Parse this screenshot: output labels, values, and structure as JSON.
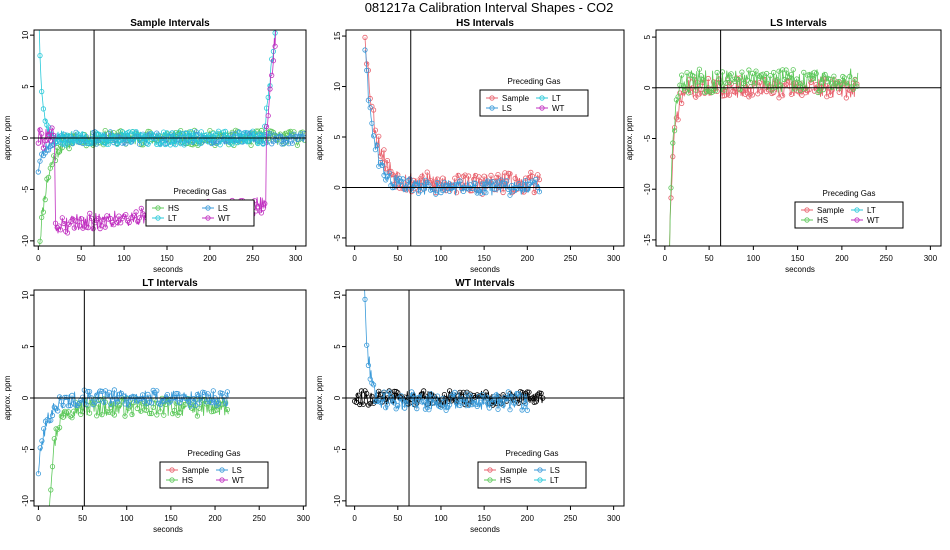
{
  "figure": {
    "title": "081217a   Calibration Interval Shapes - CO2"
  },
  "colors": {
    "Sample": "#e8606c",
    "HS": "#5cc85a",
    "LS": "#3a9ad9",
    "LT": "#28c9d9",
    "WT": "#c02fc0",
    "none": "#000000"
  },
  "chart_data": [
    {
      "type": "line",
      "title": "Sample Intervals",
      "xlabel": "seconds",
      "ylabel": "approx. ppm",
      "xlim": [
        -5,
        312
      ],
      "ylim": [
        -10.5,
        10.5
      ],
      "xticks": [
        0,
        50,
        100,
        150,
        200,
        250,
        300
      ],
      "yticks": [
        -10,
        -5,
        0,
        5,
        10
      ],
      "vline": 65,
      "hline": 0,
      "legend": {
        "title": "Preceding Gas",
        "position": "bottom-center",
        "entries": [
          "HS",
          "LS",
          "LT",
          "WT"
        ]
      },
      "series": [
        {
          "name": "HS",
          "start": 0,
          "end": 310,
          "base": 0,
          "decay": [
            -12,
            10
          ],
          "noise": 0.75,
          "seed": 11
        },
        {
          "name": "LS",
          "start": 0,
          "end": 310,
          "base": 0,
          "decay": [
            -3,
            8
          ],
          "noise": 0.6,
          "seed": 23
        },
        {
          "name": "LT",
          "start": 0,
          "end": 310,
          "base": 0,
          "decay": [
            14,
            4
          ],
          "noise": 0.7,
          "seed": 37,
          "tailrise": [
            262,
            14
          ]
        },
        {
          "name": "WT",
          "start": 0,
          "end": 310,
          "base": 0,
          "noise": 1.0,
          "seed": 41,
          "segment": {
            "from": 20,
            "to": 265,
            "base": -8.5,
            "slope": 0.008,
            "noise": 0.9
          },
          "tailrise": [
            265,
            18
          ]
        }
      ]
    },
    {
      "type": "line",
      "title": "HS Intervals",
      "xlabel": "seconds",
      "ylabel": "approx. ppm",
      "xlim": [
        -10,
        312
      ],
      "ylim": [
        -5.8,
        15.6
      ],
      "xticks": [
        0,
        50,
        100,
        150,
        200,
        250,
        300
      ],
      "yticks": [
        -5,
        0,
        5,
        10,
        15
      ],
      "vline": 65,
      "hline": 0,
      "legend": {
        "title": "Preceding Gas",
        "position": "top-right",
        "entries": [
          "Sample",
          "LT",
          "LS",
          "WT"
        ]
      },
      "series": [
        {
          "name": "Sample",
          "start": 12,
          "end": 215,
          "base": 0.4,
          "decay": [
            15,
            12
          ],
          "noise": 1.1,
          "seed": 53
        },
        {
          "name": "LS",
          "start": 12,
          "end": 215,
          "base": 0,
          "decay": [
            14,
            10
          ],
          "noise": 0.8,
          "seed": 61
        }
      ]
    },
    {
      "type": "line",
      "title": "LS Intervals",
      "xlabel": "seconds",
      "ylabel": "approx. ppm",
      "xlim": [
        -10,
        312
      ],
      "ylim": [
        -15.6,
        5.7
      ],
      "xticks": [
        0,
        50,
        100,
        150,
        200,
        250,
        300
      ],
      "yticks": [
        -15,
        -10,
        -5,
        0,
        5
      ],
      "vline": 63,
      "hline": 0,
      "legend": {
        "title": "Preceding Gas",
        "position": "bottom-right",
        "entries": [
          "Sample",
          "LT",
          "HS",
          "WT"
        ]
      },
      "series": [
        {
          "name": "Sample",
          "start": 5,
          "end": 218,
          "base": 0,
          "decay": [
            -16,
            5
          ],
          "noise": 1.0,
          "seed": 71
        },
        {
          "name": "HS",
          "start": 5,
          "end": 218,
          "base": 0.7,
          "decay": [
            -18,
            4
          ],
          "noise": 1.2,
          "seed": 83
        }
      ]
    },
    {
      "type": "line",
      "title": "LT Intervals",
      "xlabel": "seconds",
      "ylabel": "approx. ppm",
      "xlim": [
        -5,
        303
      ],
      "ylim": [
        -10.5,
        10.5
      ],
      "xticks": [
        0,
        50,
        100,
        150,
        200,
        250,
        300
      ],
      "yticks": [
        -10,
        -5,
        0,
        5,
        10
      ],
      "vline": 52,
      "hline": 0,
      "legend": {
        "title": "Preceding Gas",
        "position": "bottom-right",
        "entries": [
          "Sample",
          "LS",
          "HS",
          "WT"
        ]
      },
      "series": [
        {
          "name": "HS",
          "start": 10,
          "end": 215,
          "base": -0.9,
          "decay": [
            -14,
            6
          ],
          "noise": 0.9,
          "seed": 97
        },
        {
          "name": "LS",
          "start": 0,
          "end": 215,
          "base": 0,
          "decay": [
            -7,
            9
          ],
          "noise": 0.8,
          "seed": 101
        }
      ]
    },
    {
      "type": "line",
      "title": "WT Intervals",
      "xlabel": "seconds",
      "ylabel": "approx. ppm",
      "xlim": [
        -10,
        312
      ],
      "ylim": [
        -10.5,
        10.5
      ],
      "xticks": [
        0,
        50,
        100,
        150,
        200,
        250,
        300
      ],
      "yticks": [
        -10,
        -5,
        0,
        5,
        10
      ],
      "vline": 63,
      "hline": 0,
      "legend": {
        "title": "Preceding Gas",
        "position": "bottom-right",
        "entries": [
          "Sample",
          "LS",
          "HS",
          "LT"
        ]
      },
      "series": [
        {
          "name": "none",
          "start": 0,
          "end": 218,
          "base": 0,
          "noise": 0.7,
          "seed": 113
        },
        {
          "name": "LS",
          "start": 10,
          "end": 200,
          "base": -0.3,
          "decay": [
            14,
            5
          ],
          "noise": 0.9,
          "seed": 127
        }
      ]
    }
  ]
}
